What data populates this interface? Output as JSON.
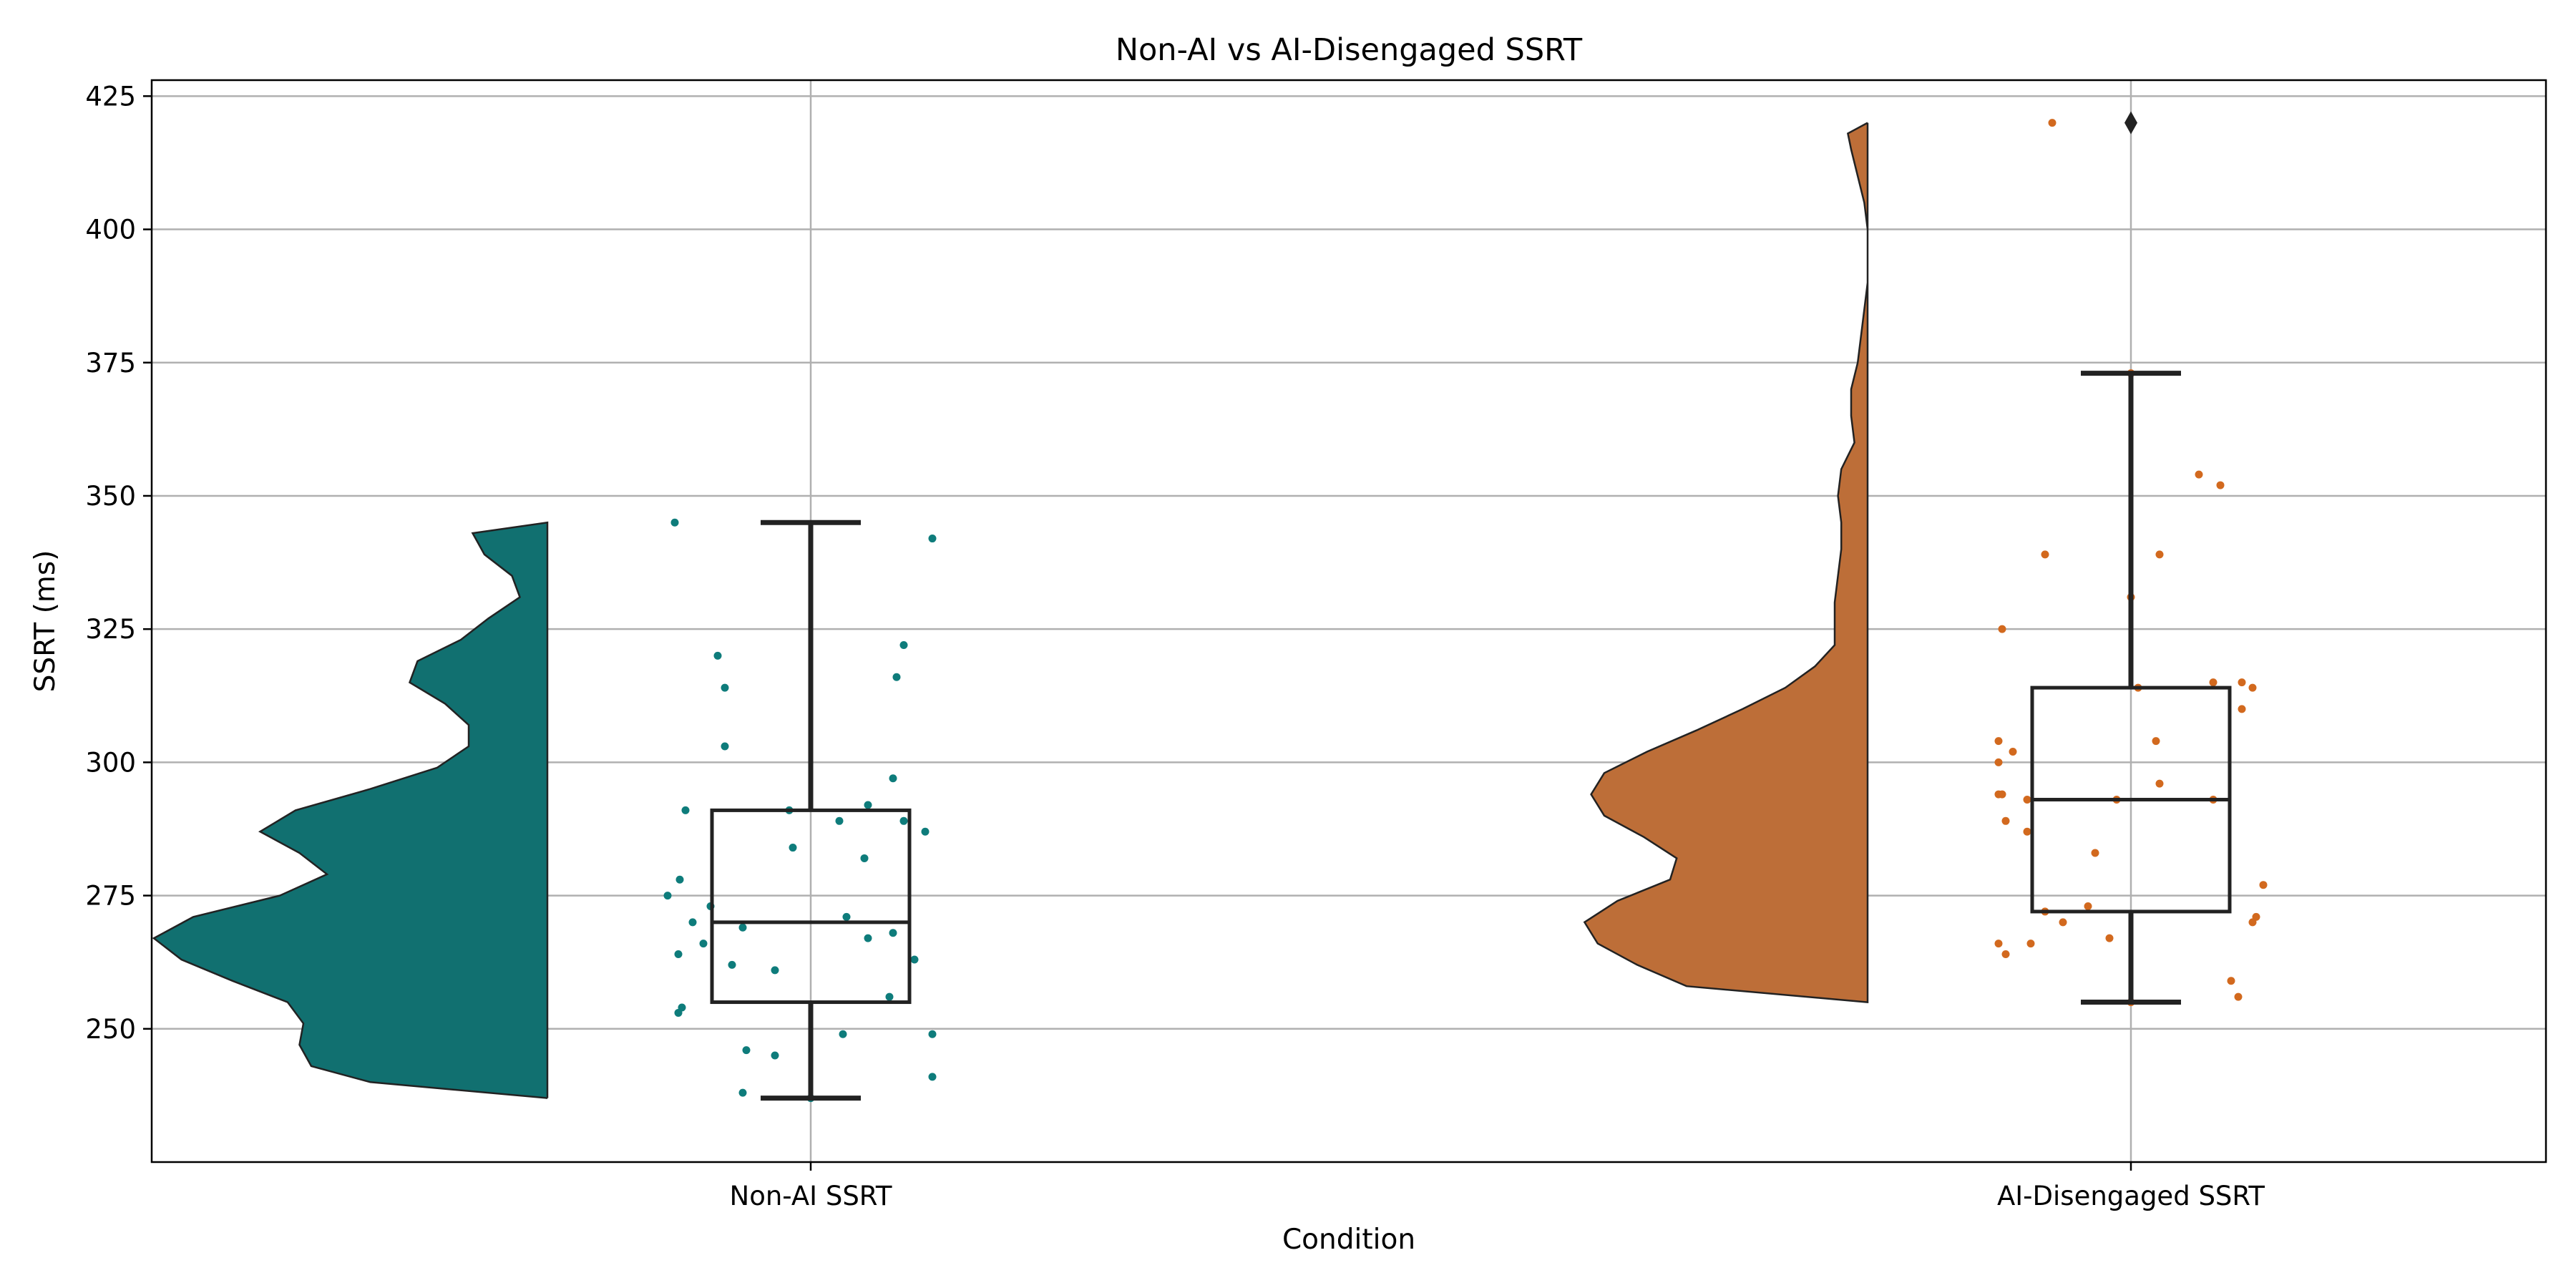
{
  "chart_data": {
    "type": "violin-box-strip",
    "title": "Non-AI vs AI-Disengaged SSRT",
    "xlabel": "Condition",
    "ylabel": "SSRT (ms)",
    "ylim": [
      225,
      428
    ],
    "yticks": [
      250,
      275,
      300,
      325,
      350,
      375,
      400,
      425
    ],
    "grid": true,
    "categories": [
      "Non-AI SSRT",
      "AI-Disengaged SSRT"
    ],
    "groups": [
      {
        "name": "Non-AI SSRT",
        "color": "#117070",
        "point_color": "#0e7c7b",
        "box": {
          "whisker_low": 237,
          "q1": 255,
          "median": 270,
          "q3": 291,
          "whisker_high": 345
        },
        "outliers": [],
        "density": [
          {
            "y": 237,
            "w": 0.0
          },
          {
            "y": 240,
            "w": 0.45
          },
          {
            "y": 243,
            "w": 0.6
          },
          {
            "y": 247,
            "w": 0.63
          },
          {
            "y": 251,
            "w": 0.62
          },
          {
            "y": 255,
            "w": 0.66
          },
          {
            "y": 259,
            "w": 0.8
          },
          {
            "y": 263,
            "w": 0.93
          },
          {
            "y": 267,
            "w": 1.0
          },
          {
            "y": 271,
            "w": 0.9
          },
          {
            "y": 275,
            "w": 0.68
          },
          {
            "y": 279,
            "w": 0.56
          },
          {
            "y": 283,
            "w": 0.63
          },
          {
            "y": 287,
            "w": 0.73
          },
          {
            "y": 291,
            "w": 0.64
          },
          {
            "y": 295,
            "w": 0.45
          },
          {
            "y": 299,
            "w": 0.28
          },
          {
            "y": 303,
            "w": 0.2
          },
          {
            "y": 307,
            "w": 0.2
          },
          {
            "y": 311,
            "w": 0.26
          },
          {
            "y": 315,
            "w": 0.35
          },
          {
            "y": 319,
            "w": 0.33
          },
          {
            "y": 323,
            "w": 0.22
          },
          {
            "y": 327,
            "w": 0.15
          },
          {
            "y": 331,
            "w": 0.07
          },
          {
            "y": 335,
            "w": 0.09
          },
          {
            "y": 339,
            "w": 0.16
          },
          {
            "y": 343,
            "w": 0.19
          },
          {
            "y": 345,
            "w": 0.0
          }
        ],
        "points": [
          345,
          342,
          320,
          314,
          303,
          291,
          291,
          289,
          292,
          284,
          282,
          278,
          275,
          273,
          271,
          270,
          269,
          268,
          267,
          266,
          264,
          263,
          262,
          261,
          256,
          254,
          253,
          249,
          249,
          246,
          245,
          241,
          238,
          237,
          322,
          316,
          297,
          289,
          287
        ]
      },
      {
        "name": "AI-Disengaged SSRT",
        "color": "#bd6e38",
        "point_color": "#d2691e",
        "box": {
          "whisker_low": 255,
          "q1": 272,
          "median": 293,
          "q3": 314,
          "whisker_high": 373
        },
        "outliers": [
          420
        ],
        "density": [
          {
            "y": 255,
            "w": 0.0
          },
          {
            "y": 258,
            "w": 0.55
          },
          {
            "y": 262,
            "w": 0.7
          },
          {
            "y": 266,
            "w": 0.82
          },
          {
            "y": 270,
            "w": 0.86
          },
          {
            "y": 274,
            "w": 0.76
          },
          {
            "y": 278,
            "w": 0.6
          },
          {
            "y": 282,
            "w": 0.58
          },
          {
            "y": 286,
            "w": 0.68
          },
          {
            "y": 290,
            "w": 0.8
          },
          {
            "y": 294,
            "w": 0.84
          },
          {
            "y": 298,
            "w": 0.8
          },
          {
            "y": 302,
            "w": 0.67
          },
          {
            "y": 306,
            "w": 0.52
          },
          {
            "y": 310,
            "w": 0.38
          },
          {
            "y": 314,
            "w": 0.25
          },
          {
            "y": 318,
            "w": 0.16
          },
          {
            "y": 322,
            "w": 0.1
          },
          {
            "y": 326,
            "w": 0.1
          },
          {
            "y": 330,
            "w": 0.1
          },
          {
            "y": 335,
            "w": 0.09
          },
          {
            "y": 340,
            "w": 0.08
          },
          {
            "y": 345,
            "w": 0.08
          },
          {
            "y": 350,
            "w": 0.09
          },
          {
            "y": 355,
            "w": 0.08
          },
          {
            "y": 360,
            "w": 0.04
          },
          {
            "y": 365,
            "w": 0.05
          },
          {
            "y": 370,
            "w": 0.05
          },
          {
            "y": 375,
            "w": 0.03
          },
          {
            "y": 380,
            "w": 0.02
          },
          {
            "y": 385,
            "w": 0.01
          },
          {
            "y": 390,
            "w": 0.0
          },
          {
            "y": 395,
            "w": 0.0
          },
          {
            "y": 400,
            "w": 0.0
          },
          {
            "y": 405,
            "w": 0.01
          },
          {
            "y": 410,
            "w": 0.03
          },
          {
            "y": 415,
            "w": 0.05
          },
          {
            "y": 418,
            "w": 0.06
          },
          {
            "y": 420,
            "w": 0.0
          }
        ],
        "points": [
          420,
          373,
          354,
          352,
          339,
          339,
          331,
          325,
          315,
          315,
          314,
          314,
          310,
          304,
          304,
          302,
          300,
          296,
          294,
          294,
          293,
          293,
          293,
          289,
          287,
          283,
          277,
          273,
          272,
          271,
          270,
          270,
          267,
          266,
          266,
          264,
          259,
          256,
          255
        ]
      }
    ]
  }
}
